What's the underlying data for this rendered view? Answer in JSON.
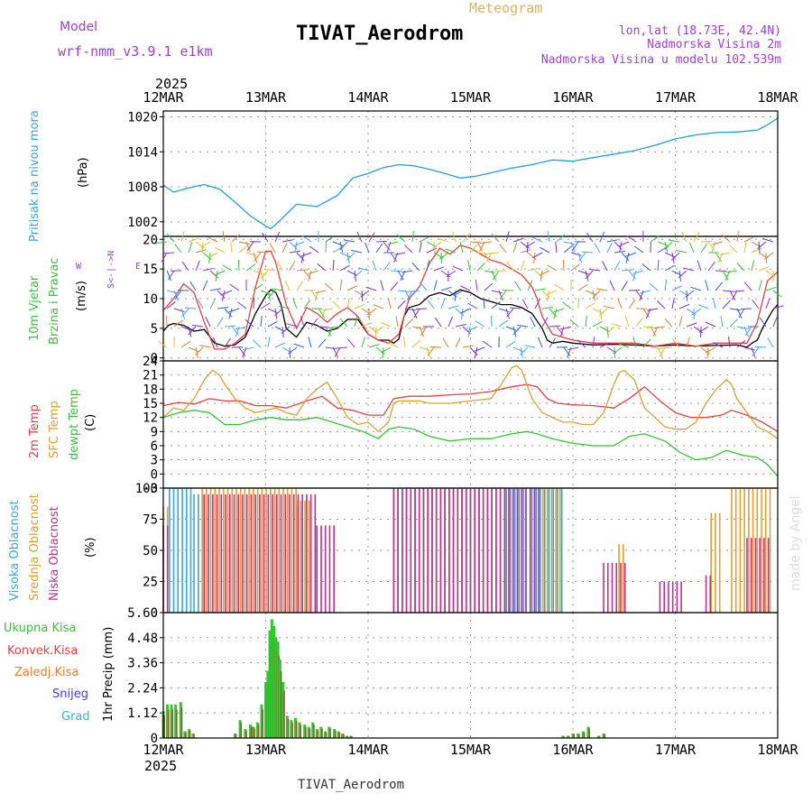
{
  "header": {
    "model_label": "Model",
    "model_value": "wrf-nmm_v3.9.1 e1km",
    "product": "Meteogram",
    "station": "TIVAT_Aerodrom",
    "lonlat": "lon,lat (18.73E, 42.4N)",
    "elev": "Nadmorska Visina 2m",
    "elev_model": "Nadmorska Visina u modelu 102.539m",
    "footer_station": "TIVAT_Aerodrom",
    "credit": "made by Angel"
  },
  "colors": {
    "pressure": "#1ea0e6",
    "temp2m": "#e84040",
    "sfc_temp": "#e0a030",
    "dewpoint": "#30c830",
    "purple": "#a040d0",
    "grey_grid": "#999999"
  },
  "x_axis": {
    "year": "2025",
    "ticks": [
      "12MAR",
      "13MAR",
      "14MAR",
      "15MAR",
      "16MAR",
      "17MAR",
      "18MAR"
    ],
    "day_start": 12,
    "day_end": 18
  },
  "chart_data": [
    {
      "type": "line",
      "title": "Pritisak na nivou mora",
      "ylabel": "(hPa)",
      "ylim": [
        999.5,
        1021
      ],
      "yticks": [
        1002,
        1008,
        1014,
        1020
      ],
      "grid": true,
      "series": [
        {
          "name": "Pritisak na nivou mora",
          "color": "#1ea0e6",
          "x": [
            12.0,
            12.1,
            12.25,
            12.4,
            12.55,
            12.7,
            12.85,
            13.0,
            13.05,
            13.15,
            13.3,
            13.5,
            13.7,
            13.85,
            14.0,
            14.15,
            14.3,
            14.45,
            14.6,
            14.75,
            14.9,
            15.05,
            15.2,
            15.4,
            15.6,
            15.8,
            16.0,
            16.2,
            16.4,
            16.6,
            16.8,
            17.0,
            17.2,
            17.4,
            17.6,
            17.8,
            17.9,
            18.0
          ],
          "values": [
            1008.3,
            1007.1,
            1007.8,
            1008.4,
            1007.6,
            1005.4,
            1003.0,
            1001.3,
            1000.8,
            1002.4,
            1005.0,
            1004.6,
            1006.5,
            1009.5,
            1010.3,
            1011.3,
            1011.8,
            1011.6,
            1011.0,
            1010.3,
            1009.5,
            1009.8,
            1010.4,
            1011.2,
            1011.8,
            1012.6,
            1012.4,
            1013.0,
            1013.6,
            1014.2,
            1015.1,
            1016.2,
            1016.9,
            1017.3,
            1017.4,
            1017.7,
            1018.6,
            1019.8
          ]
        }
      ]
    },
    {
      "type": "line",
      "title": "10m Vjetar Brzina i Pravac",
      "ylabel": "(m/s)",
      "ylim": [
        -0.5,
        20.5
      ],
      "yticks": [
        0,
        5,
        10,
        15,
        20
      ],
      "grid": true,
      "direction_legend": [
        "N",
        "E",
        "W",
        "S"
      ],
      "series": [
        {
          "name": "speed",
          "color": "#000000",
          "x": [
            12.0,
            12.05,
            12.1,
            12.2,
            12.3,
            12.4,
            12.5,
            12.6,
            12.7,
            12.8,
            12.9,
            13.0,
            13.05,
            13.1,
            13.15,
            13.2,
            13.3,
            13.4,
            13.5,
            13.6,
            13.7,
            13.8,
            13.9,
            14.0,
            14.1,
            14.2,
            14.25,
            14.3,
            14.35,
            14.4,
            14.5,
            14.6,
            14.7,
            14.8,
            14.9,
            15.0,
            15.1,
            15.2,
            15.3,
            15.4,
            15.5,
            15.6,
            15.7,
            15.75,
            15.8,
            15.9,
            16.0,
            16.2,
            16.4,
            16.6,
            16.8,
            17.0,
            17.2,
            17.4,
            17.6,
            17.7,
            17.75,
            17.8,
            17.85,
            17.9,
            17.95,
            18.0
          ],
          "values": [
            4.5,
            5.5,
            5.8,
            5.5,
            4.5,
            4.8,
            2.5,
            2.0,
            2.2,
            3.5,
            7.5,
            10.5,
            11.5,
            11.0,
            9.0,
            5.0,
            3.5,
            6.0,
            5.5,
            4.5,
            5.0,
            6.5,
            6.5,
            4.0,
            3.0,
            3.0,
            2.5,
            3.2,
            7.0,
            8.5,
            9.0,
            10.5,
            11.0,
            10.5,
            11.5,
            11.0,
            10.0,
            9.5,
            9.0,
            9.0,
            8.5,
            7.5,
            5.0,
            3.0,
            2.5,
            2.8,
            2.5,
            2.2,
            2.3,
            2.2,
            2.0,
            2.2,
            2.0,
            2.1,
            2.2,
            1.8,
            2.5,
            3.0,
            5.0,
            6.5,
            8.0,
            9.0
          ]
        },
        {
          "name": "gust",
          "color": "#e84040",
          "x": [
            12.0,
            12.1,
            12.2,
            12.3,
            12.4,
            12.5,
            12.6,
            12.7,
            12.8,
            12.9,
            13.0,
            13.05,
            13.1,
            13.2,
            13.3,
            13.4,
            13.5,
            13.6,
            13.7,
            13.8,
            13.9,
            14.0,
            14.1,
            14.2,
            14.3,
            14.4,
            14.5,
            14.6,
            14.7,
            14.8,
            14.9,
            15.0,
            15.1,
            15.2,
            15.3,
            15.4,
            15.5,
            15.6,
            15.65,
            15.7,
            15.8,
            16.0,
            16.2,
            16.4,
            16.6,
            16.8,
            17.0,
            17.2,
            17.4,
            17.6,
            17.7,
            17.8,
            17.9,
            18.0
          ],
          "values": [
            8.0,
            10.0,
            12.5,
            11.0,
            6.0,
            1.5,
            1.5,
            2.5,
            4.0,
            12.0,
            18.0,
            18.0,
            16.0,
            9.0,
            5.0,
            8.5,
            7.5,
            6.0,
            7.5,
            8.5,
            7.0,
            4.0,
            3.0,
            2.5,
            4.0,
            10.0,
            12.0,
            16.0,
            18.5,
            17.5,
            19.0,
            18.5,
            17.5,
            16.5,
            16.0,
            15.0,
            14.0,
            12.0,
            10.0,
            7.0,
            4.0,
            3.0,
            2.5,
            2.5,
            2.5,
            2.0,
            2.5,
            2.0,
            2.5,
            2.5,
            2.5,
            6.0,
            13.0,
            14.5
          ]
        }
      ]
    },
    {
      "type": "line",
      "title": "2m Temp / SFC Temp / dewpt Temp",
      "ylabel": "(C)",
      "ylim": [
        -3,
        24
      ],
      "yticks": [
        -3,
        0,
        3,
        6,
        9,
        12,
        15,
        18,
        21,
        24
      ],
      "grid": true,
      "series": [
        {
          "name": "2m Temp",
          "color": "#e84040",
          "x": [
            12.0,
            12.15,
            12.3,
            12.45,
            12.6,
            12.75,
            12.9,
            13.05,
            13.2,
            13.4,
            13.55,
            13.7,
            13.85,
            14.0,
            14.15,
            14.25,
            14.4,
            14.6,
            14.8,
            15.0,
            15.2,
            15.4,
            15.55,
            15.65,
            15.75,
            15.85,
            16.0,
            16.2,
            16.4,
            16.55,
            16.7,
            16.85,
            17.0,
            17.15,
            17.3,
            17.45,
            17.55,
            17.7,
            17.85,
            18.0
          ],
          "values": [
            14.5,
            15.2,
            14.8,
            16.0,
            15.5,
            15.5,
            14.5,
            14.5,
            14.0,
            15.5,
            16.5,
            14.0,
            13.5,
            12.5,
            12.5,
            16.0,
            16.5,
            16.5,
            16.8,
            17.0,
            17.5,
            18.5,
            19.0,
            18.5,
            16.0,
            15.0,
            14.7,
            14.5,
            14.0,
            16.0,
            18.5,
            15.5,
            13.0,
            12.0,
            12.0,
            12.5,
            13.5,
            12.5,
            11.0,
            9.0
          ]
        },
        {
          "name": "SFC Temp",
          "color": "#e0a030",
          "x": [
            12.0,
            12.1,
            12.2,
            12.3,
            12.4,
            12.48,
            12.55,
            12.6,
            12.7,
            12.8,
            12.9,
            13.0,
            13.1,
            13.2,
            13.3,
            13.4,
            13.5,
            13.6,
            13.7,
            13.8,
            13.9,
            14.0,
            14.1,
            14.2,
            14.25,
            14.3,
            14.4,
            14.5,
            14.6,
            14.8,
            15.0,
            15.2,
            15.3,
            15.4,
            15.45,
            15.5,
            15.55,
            15.6,
            15.7,
            15.8,
            15.9,
            16.0,
            16.1,
            16.2,
            16.3,
            16.4,
            16.45,
            16.5,
            16.6,
            16.7,
            16.8,
            16.9,
            17.0,
            17.1,
            17.2,
            17.3,
            17.4,
            17.5,
            17.55,
            17.6,
            17.7,
            17.8,
            17.9,
            18.0
          ],
          "values": [
            12.0,
            14.0,
            13.5,
            16.0,
            20.0,
            22.0,
            21.0,
            19.0,
            16.0,
            14.0,
            13.0,
            13.5,
            14.0,
            13.0,
            12.5,
            16.0,
            18.0,
            19.5,
            16.0,
            12.0,
            10.5,
            11.0,
            9.0,
            11.0,
            15.0,
            15.5,
            15.5,
            15.5,
            15.0,
            15.0,
            15.5,
            16.0,
            19.0,
            22.5,
            23.0,
            22.0,
            19.0,
            16.0,
            13.0,
            12.0,
            11.0,
            11.0,
            10.5,
            10.5,
            13.0,
            19.0,
            21.5,
            22.0,
            20.0,
            14.0,
            12.0,
            10.0,
            9.5,
            9.5,
            11.0,
            15.0,
            18.0,
            20.0,
            19.0,
            16.0,
            13.0,
            10.0,
            9.0,
            7.5
          ]
        },
        {
          "name": "dewpt Temp",
          "color": "#30c830",
          "x": [
            12.0,
            12.15,
            12.3,
            12.45,
            12.6,
            12.75,
            12.9,
            13.05,
            13.2,
            13.35,
            13.5,
            13.65,
            13.8,
            13.95,
            14.1,
            14.2,
            14.3,
            14.45,
            14.6,
            14.8,
            15.0,
            15.2,
            15.4,
            15.55,
            15.65,
            15.8,
            16.0,
            16.2,
            16.4,
            16.55,
            16.7,
            16.9,
            17.05,
            17.2,
            17.35,
            17.5,
            17.65,
            17.8,
            17.9,
            18.0
          ],
          "values": [
            12.0,
            13.0,
            13.5,
            13.0,
            10.5,
            10.5,
            11.5,
            12.0,
            11.5,
            11.5,
            12.0,
            11.0,
            10.0,
            9.0,
            7.5,
            9.5,
            10.0,
            9.5,
            8.0,
            7.0,
            7.5,
            7.5,
            8.5,
            9.0,
            8.5,
            7.5,
            6.5,
            6.0,
            6.0,
            8.0,
            8.5,
            7.0,
            4.5,
            3.0,
            3.5,
            5.0,
            4.0,
            3.5,
            2.0,
            -0.5
          ]
        }
      ]
    },
    {
      "type": "bar",
      "title": "Visoka Oblacnost / Srednja Oblacnost / Niska Oblacnost",
      "ylabel": "(%)",
      "ylim": [
        0,
        100
      ],
      "yticks": [
        0,
        25,
        50,
        75,
        100
      ],
      "grid": true,
      "series": [
        {
          "name": "Visoka Oblacnost",
          "color": "#30a8e8",
          "segments": [
            [
              12.06,
              12.3,
              100
            ],
            [
              12.3,
              12.4,
              95
            ],
            [
              13.3,
              13.38,
              85
            ],
            [
              14.25,
              15.35,
              100
            ],
            [
              15.35,
              15.55,
              100
            ],
            [
              15.6,
              15.9,
              100
            ]
          ]
        },
        {
          "name": "Srednja Oblacnost",
          "color": "#e0a030",
          "segments": [
            [
              12.0,
              12.05,
              85
            ],
            [
              12.38,
              13.3,
              100
            ],
            [
              13.3,
              13.45,
              90
            ],
            [
              14.25,
              15.9,
              100
            ],
            [
              16.45,
              16.5,
              55
            ],
            [
              17.35,
              17.45,
              80
            ],
            [
              17.55,
              17.95,
              100
            ]
          ]
        },
        {
          "name": "Niska Oblacnost",
          "color": "#c03090",
          "segments": [
            [
              12.0,
              12.08,
              70
            ],
            [
              12.4,
              13.5,
              95
            ],
            [
              13.5,
              13.7,
              70
            ],
            [
              14.25,
              15.7,
              100
            ],
            [
              16.3,
              16.55,
              40
            ],
            [
              16.85,
              17.1,
              25
            ],
            [
              17.3,
              17.35,
              30
            ],
            [
              17.7,
              17.95,
              60
            ]
          ]
        }
      ]
    },
    {
      "type": "bar",
      "title": "1hr Precip",
      "ylabel": "1hr Precip (mm)",
      "ylim": [
        0,
        5.6
      ],
      "yticks": [
        0,
        1.12,
        2.24,
        3.36,
        4.48,
        5.6
      ],
      "grid": true,
      "legend": [
        "Ukupna Kisa",
        "Konvek.Kisa",
        "Zaledj.Kisa",
        "Snijeg",
        "Grad"
      ],
      "legend_colors": [
        "#30c830",
        "#e84040",
        "#e88030",
        "#4040e0",
        "#20c0c0"
      ],
      "series": [
        {
          "name": "Ukupna Kisa",
          "color": "#30c830",
          "x": [
            12.0,
            12.04,
            12.08,
            12.12,
            12.17,
            12.21,
            12.25,
            12.29,
            12.7,
            12.75,
            12.8,
            12.85,
            12.88,
            12.92,
            12.96,
            13.0,
            13.02,
            13.04,
            13.06,
            13.08,
            13.1,
            13.12,
            13.14,
            13.17,
            13.21,
            13.25,
            13.29,
            13.33,
            13.38,
            13.42,
            13.46,
            13.5,
            13.54,
            13.58,
            13.62,
            13.67,
            13.71,
            13.75,
            13.79,
            13.83,
            15.9,
            15.95,
            16.0,
            16.05,
            16.1,
            16.15,
            16.25,
            16.3
          ],
          "values": [
            1.2,
            1.5,
            1.5,
            1.5,
            1.6,
            0.3,
            0.4,
            0.2,
            0.2,
            0.8,
            0.4,
            0.6,
            0.5,
            0.7,
            1.5,
            2.5,
            3.0,
            4.8,
            5.3,
            5.0,
            4.5,
            4.3,
            3.5,
            2.5,
            1.0,
            0.8,
            0.9,
            0.7,
            0.6,
            0.5,
            0.7,
            0.4,
            0.5,
            0.3,
            0.5,
            0.4,
            0.3,
            0.2,
            0.1,
            0.1,
            0.1,
            0.1,
            0.2,
            0.2,
            0.3,
            0.5,
            0.1,
            0.2
          ]
        }
      ]
    }
  ]
}
